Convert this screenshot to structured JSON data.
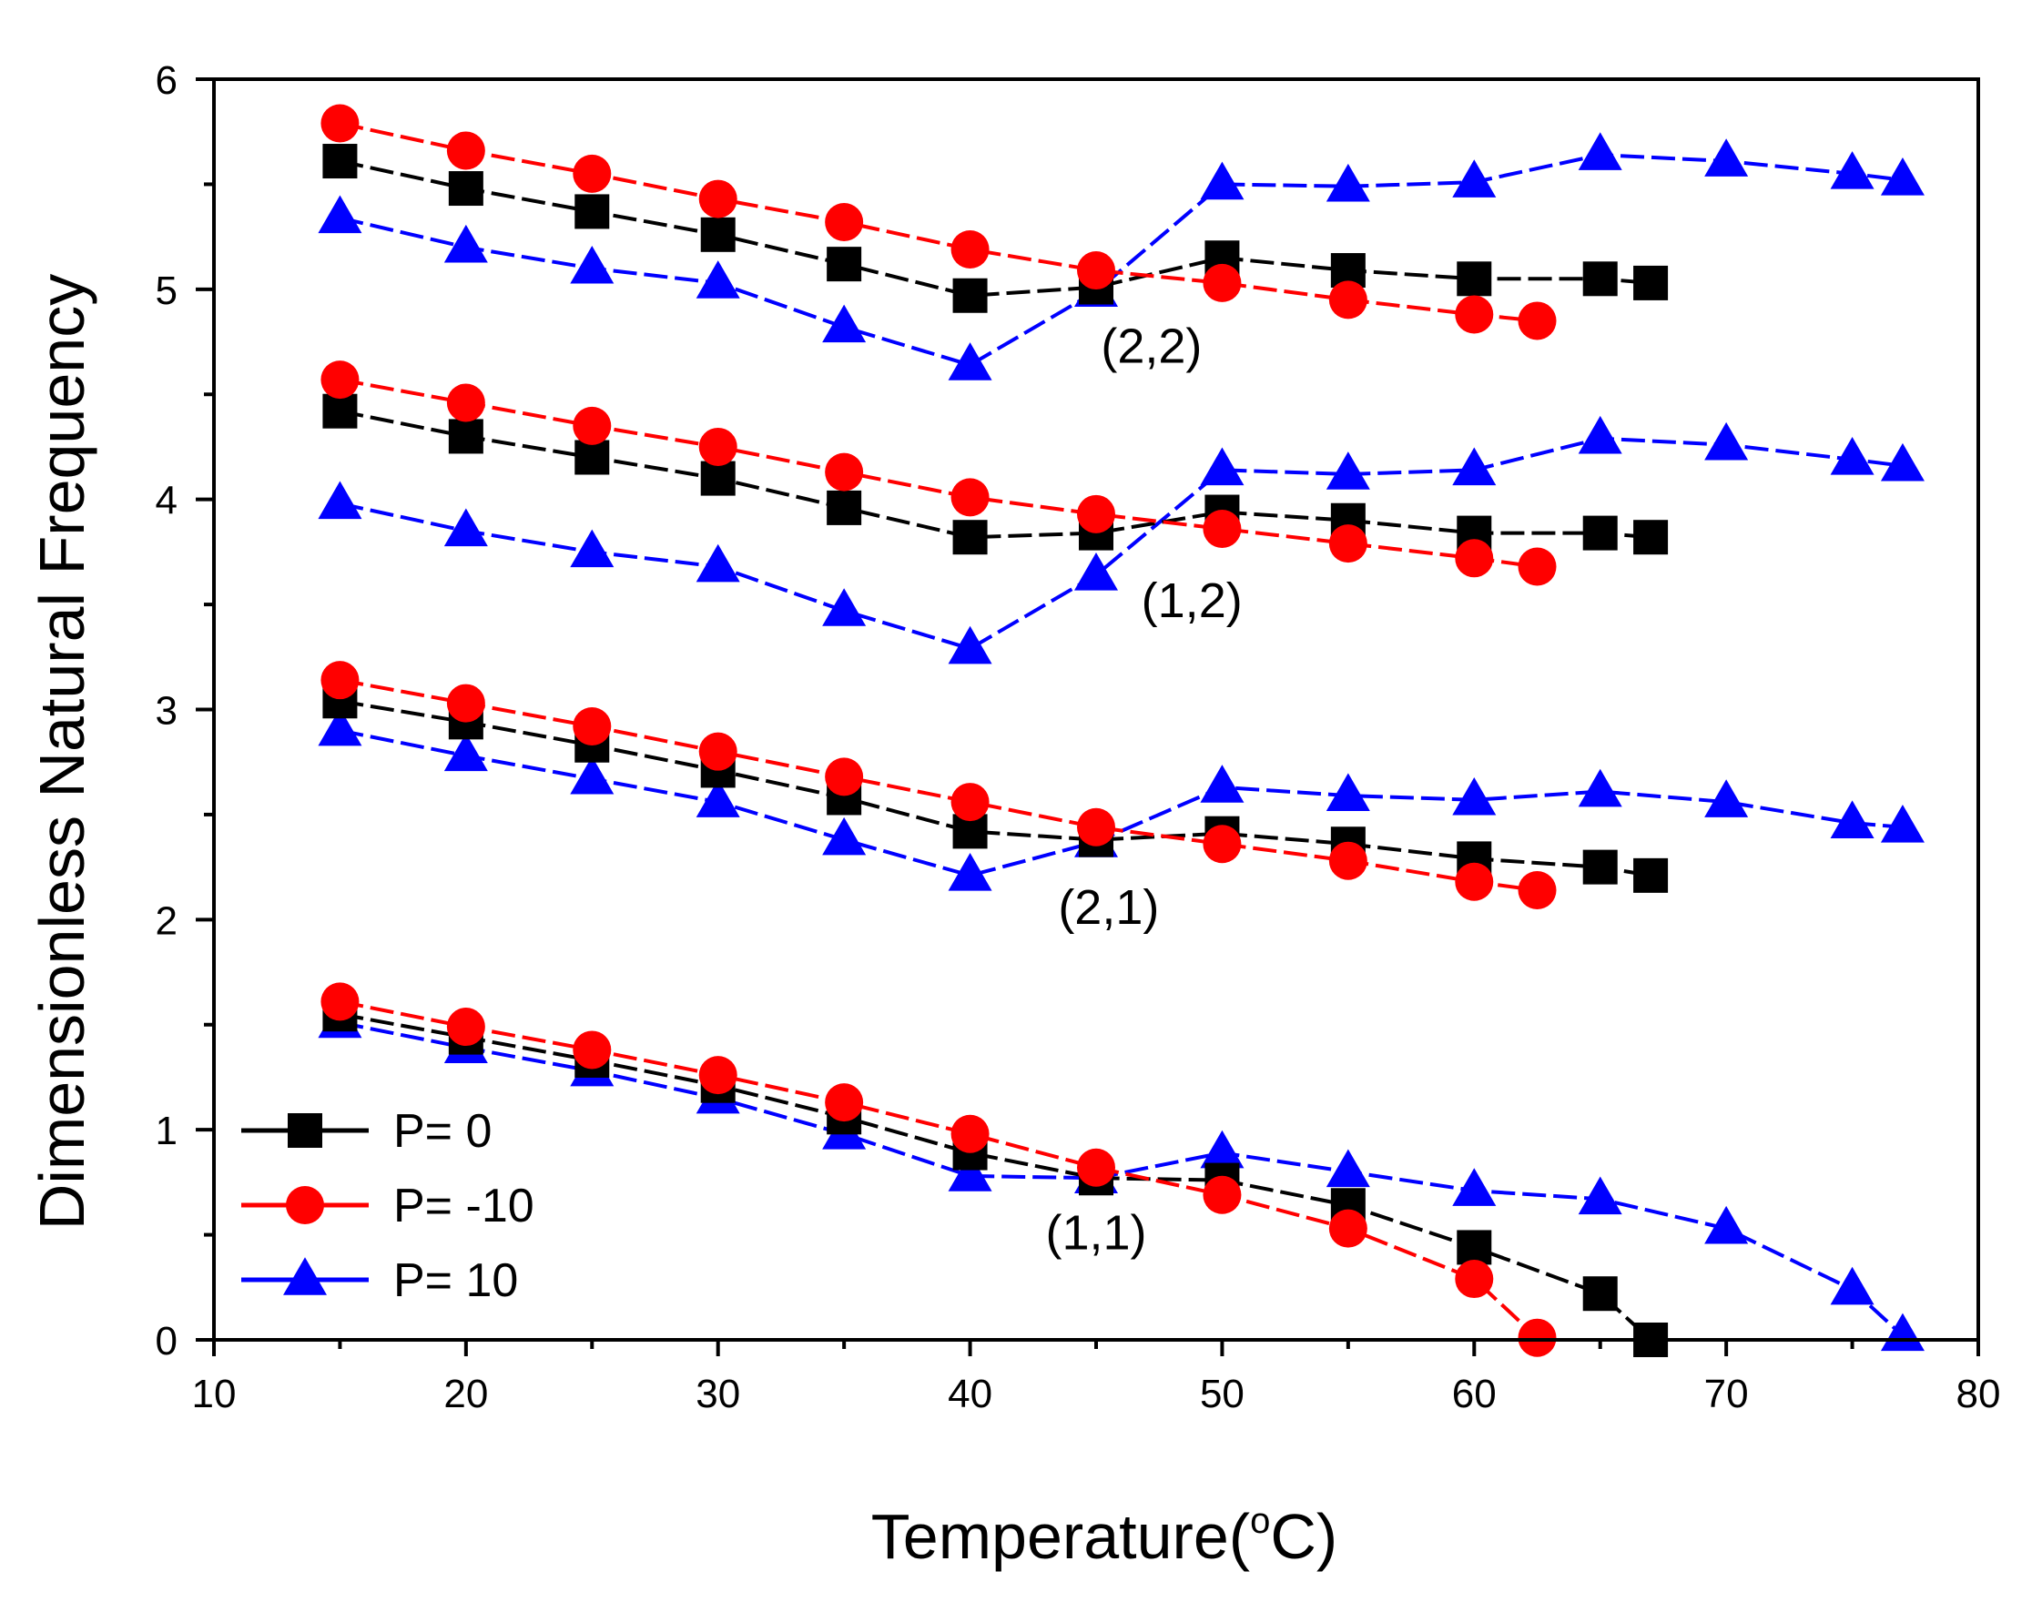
{
  "chart_data": {
    "type": "line",
    "xlabel_main": "Temperature(",
    "xlabel_sup": "o",
    "xlabel_tail": "C)",
    "ylabel": "Dimensionless Natural Frequency",
    "xlim": [
      10,
      80
    ],
    "ylim": [
      0,
      6
    ],
    "xticks": [
      10,
      20,
      30,
      40,
      50,
      60,
      70,
      80
    ],
    "yticks": [
      0,
      1,
      2,
      3,
      4,
      5,
      6
    ],
    "legend_position": "bottom-left",
    "series": [
      {
        "name": "P= 0",
        "color": "#000000",
        "marker": "square",
        "modes": [
          {
            "mode": "(1,1)",
            "x": [
              15,
              20,
              25,
              30,
              35,
              40,
              45,
              50,
              55,
              60,
              65,
              67
            ],
            "y": [
              1.55,
              1.44,
              1.33,
              1.21,
              1.06,
              0.89,
              0.77,
              0.76,
              0.64,
              0.44,
              0.22,
              0.0
            ]
          },
          {
            "mode": "(2,1)",
            "x": [
              15,
              20,
              25,
              30,
              35,
              40,
              45,
              50,
              55,
              60,
              65,
              67
            ],
            "y": [
              3.04,
              2.94,
              2.83,
              2.71,
              2.58,
              2.42,
              2.38,
              2.41,
              2.36,
              2.29,
              2.25,
              2.21
            ]
          },
          {
            "mode": "(1,2)",
            "x": [
              15,
              20,
              25,
              30,
              35,
              40,
              45,
              50,
              55,
              60,
              65,
              67
            ],
            "y": [
              4.42,
              4.3,
              4.2,
              4.1,
              3.96,
              3.82,
              3.84,
              3.94,
              3.9,
              3.84,
              3.84,
              3.82
            ]
          },
          {
            "mode": "(2,2)",
            "x": [
              15,
              20,
              25,
              30,
              35,
              40,
              45,
              50,
              55,
              60,
              65,
              67
            ],
            "y": [
              5.61,
              5.48,
              5.37,
              5.26,
              5.12,
              4.97,
              5.01,
              5.15,
              5.09,
              5.05,
              5.05,
              5.03
            ]
          }
        ]
      },
      {
        "name": "P= -10",
        "color": "#ff0000",
        "marker": "circle",
        "modes": [
          {
            "mode": "(1,1)",
            "x": [
              15,
              20,
              25,
              30,
              35,
              40,
              45,
              50,
              55,
              60,
              62.5
            ],
            "y": [
              1.61,
              1.49,
              1.38,
              1.26,
              1.13,
              0.98,
              0.82,
              0.69,
              0.53,
              0.29,
              0.01
            ]
          },
          {
            "mode": "(2,1)",
            "x": [
              15,
              20,
              25,
              30,
              35,
              40,
              45,
              50,
              55,
              60,
              62.5
            ],
            "y": [
              3.14,
              3.03,
              2.92,
              2.8,
              2.68,
              2.56,
              2.44,
              2.36,
              2.28,
              2.18,
              2.14
            ]
          },
          {
            "mode": "(1,2)",
            "x": [
              15,
              20,
              25,
              30,
              35,
              40,
              45,
              50,
              55,
              60,
              62.5
            ],
            "y": [
              4.57,
              4.46,
              4.35,
              4.25,
              4.13,
              4.01,
              3.93,
              3.86,
              3.79,
              3.72,
              3.68
            ]
          },
          {
            "mode": "(2,2)",
            "x": [
              15,
              20,
              25,
              30,
              35,
              40,
              45,
              50,
              55,
              60,
              62.5
            ],
            "y": [
              5.79,
              5.66,
              5.55,
              5.43,
              5.32,
              5.19,
              5.09,
              5.03,
              4.95,
              4.88,
              4.85
            ]
          }
        ]
      },
      {
        "name": "P= 10",
        "color": "#0000ff",
        "marker": "triangle",
        "modes": [
          {
            "mode": "(1,1)",
            "x": [
              15,
              20,
              25,
              30,
              35,
              40,
              45,
              50,
              55,
              60,
              65,
              70,
              75,
              77
            ],
            "y": [
              1.51,
              1.39,
              1.28,
              1.15,
              0.98,
              0.78,
              0.77,
              0.89,
              0.8,
              0.71,
              0.67,
              0.53,
              0.24,
              0.02
            ]
          },
          {
            "mode": "(2,1)",
            "x": [
              15,
              20,
              25,
              30,
              35,
              40,
              45,
              50,
              55,
              60,
              65,
              70,
              75,
              77
            ],
            "y": [
              2.9,
              2.78,
              2.67,
              2.56,
              2.38,
              2.21,
              2.37,
              2.63,
              2.59,
              2.57,
              2.61,
              2.56,
              2.46,
              2.44
            ]
          },
          {
            "mode": "(1,2)",
            "x": [
              15,
              20,
              25,
              30,
              35,
              40,
              45,
              50,
              55,
              60,
              65,
              70,
              75,
              77
            ],
            "y": [
              3.98,
              3.85,
              3.75,
              3.68,
              3.47,
              3.29,
              3.64,
              4.14,
              4.12,
              4.14,
              4.29,
              4.26,
              4.19,
              4.16
            ]
          },
          {
            "mode": "(2,2)",
            "x": [
              15,
              20,
              25,
              30,
              35,
              40,
              45,
              50,
              55,
              60,
              65,
              70,
              75,
              77
            ],
            "y": [
              5.34,
              5.2,
              5.1,
              5.03,
              4.82,
              4.64,
              4.99,
              5.5,
              5.49,
              5.51,
              5.64,
              5.61,
              5.55,
              5.52
            ]
          }
        ]
      }
    ],
    "annotations": [
      {
        "text": "(2,2)",
        "x": 47.2,
        "y": 4.65
      },
      {
        "text": "(1,2)",
        "x": 48.8,
        "y": 3.44
      },
      {
        "text": "(2,1)",
        "x": 45.5,
        "y": 1.98
      },
      {
        "text": "(1,1)",
        "x": 45.0,
        "y": 0.43
      }
    ]
  }
}
